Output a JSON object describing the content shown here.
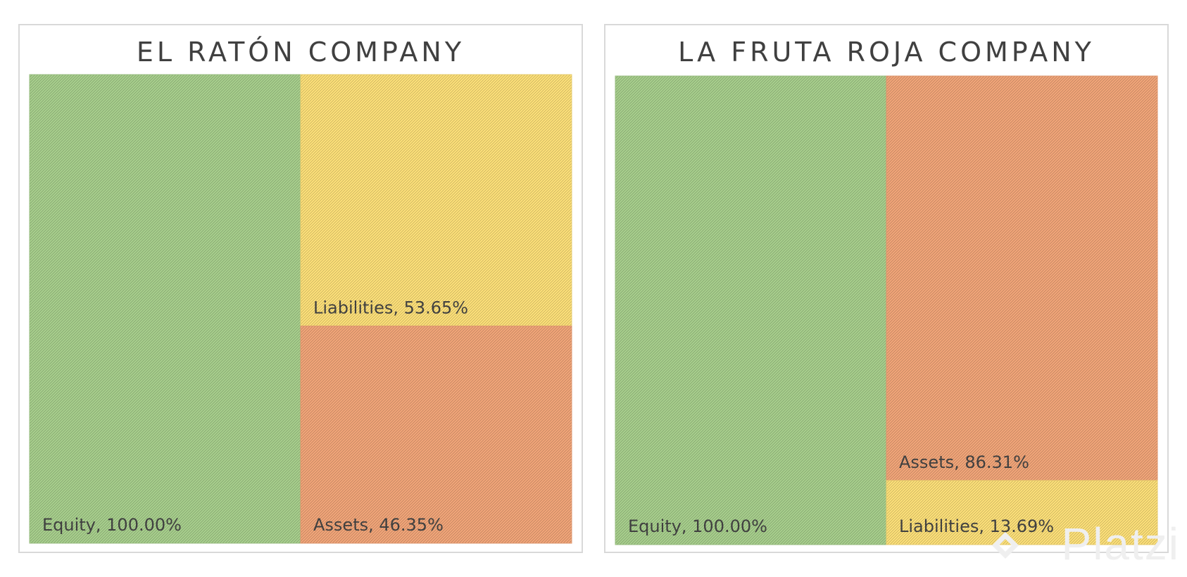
{
  "chart_data": [
    {
      "type": "treemap",
      "title": "EL RATÓN COMPANY",
      "items": [
        {
          "name": "Equity",
          "value": 100.0,
          "label": "Equity, 100.00%",
          "color": "#a9d18e"
        },
        {
          "name": "Liabilities",
          "value": 53.65,
          "label": "Liabilities, 53.65%",
          "color": "#ffe27a"
        },
        {
          "name": "Assets",
          "value": 46.35,
          "label": "Assets, 46.35%",
          "color": "#f4a77a"
        }
      ]
    },
    {
      "type": "treemap",
      "title": "LA FRUTA ROJA COMPANY",
      "items": [
        {
          "name": "Equity",
          "value": 100.0,
          "label": "Equity, 100.00%",
          "color": "#a9d18e"
        },
        {
          "name": "Assets",
          "value": 86.31,
          "label": "Assets, 86.31%",
          "color": "#f4a77a"
        },
        {
          "name": "Liabilities",
          "value": 13.69,
          "label": "Liabilities, 13.69%",
          "color": "#ffe27a"
        }
      ]
    }
  ],
  "watermark": {
    "text": "Platzi"
  },
  "colors": {
    "border": "#d9d9d9",
    "label": "#404040"
  }
}
